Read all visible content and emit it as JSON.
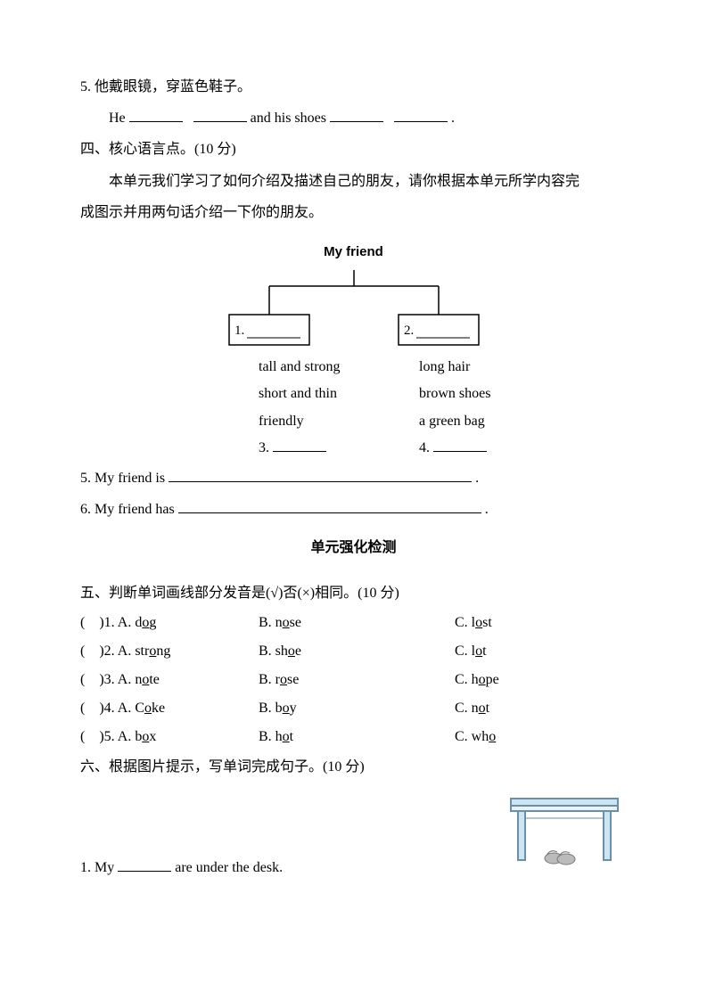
{
  "q5": {
    "num": "5.",
    "zh": "他戴眼镜，穿蓝色鞋子。",
    "en_1": "He ",
    "en_2": "and his shoes",
    "period": "."
  },
  "sec4": {
    "heading": "四、核心语言点。(10 分)",
    "intro1": "本单元我们学习了如何介绍及描述自己的朋友，请你根据本单元所学内容完",
    "intro2": "成图示并用两句话介绍一下你的朋友。",
    "diagram_title": "My friend",
    "box1_label": "1.",
    "box2_label": "2.",
    "col1": [
      "tall and strong",
      "short and thin",
      "friendly"
    ],
    "col2": [
      "long hair",
      "brown shoes",
      "a green bag"
    ],
    "row3a": "3. ",
    "row3b": "4. ",
    "line5": "5. My friend is",
    "line6": "6. My friend has",
    "period": "."
  },
  "subheader": "单元强化检测",
  "sec5": {
    "heading": "五、判断单词画线部分发音是(√)否(×)相同。(10 分)",
    "rows": [
      {
        "n": "1",
        "a_pre": "A. d",
        "a_u": "o",
        "a_post": "g",
        "b_pre": "B. n",
        "b_u": "o",
        "b_post": "se",
        "c_pre": "C. l",
        "c_u": "o",
        "c_post": "st"
      },
      {
        "n": "2",
        "a_pre": "A. str",
        "a_u": "o",
        "a_post": "ng",
        "b_pre": "B. sh",
        "b_u": "o",
        "b_post": "e",
        "c_pre": "C. l",
        "c_u": "o",
        "c_post": "t"
      },
      {
        "n": "3",
        "a_pre": "A. n",
        "a_u": "o",
        "a_post": "te",
        "b_pre": "B. r",
        "b_u": "o",
        "b_post": "se",
        "c_pre": "C. h",
        "c_u": "o",
        "c_post": "pe"
      },
      {
        "n": "4",
        "a_pre": "A. C",
        "a_u": "o",
        "a_post": "ke",
        "b_pre": "B. b",
        "b_u": "o",
        "b_post": "y",
        "c_pre": "C. n",
        "c_u": "o",
        "c_post": "t"
      },
      {
        "n": "5",
        "a_pre": "A. b",
        "a_u": "o",
        "a_post": "x",
        "b_pre": "B. h",
        "b_u": "o",
        "b_post": "t",
        "c_pre": "C. wh",
        "c_u": "o",
        "c_post": ""
      }
    ]
  },
  "sec6": {
    "heading": "六、根据图片提示，写单词完成句子。(10 分)",
    "line1_a": "1. My ",
    "line1_b": "are under the desk."
  },
  "colors": {
    "text": "#000000",
    "desk_line": "#6b8fa8",
    "desk_fill": "#cde5f0",
    "thing": "#9aa0a6"
  }
}
